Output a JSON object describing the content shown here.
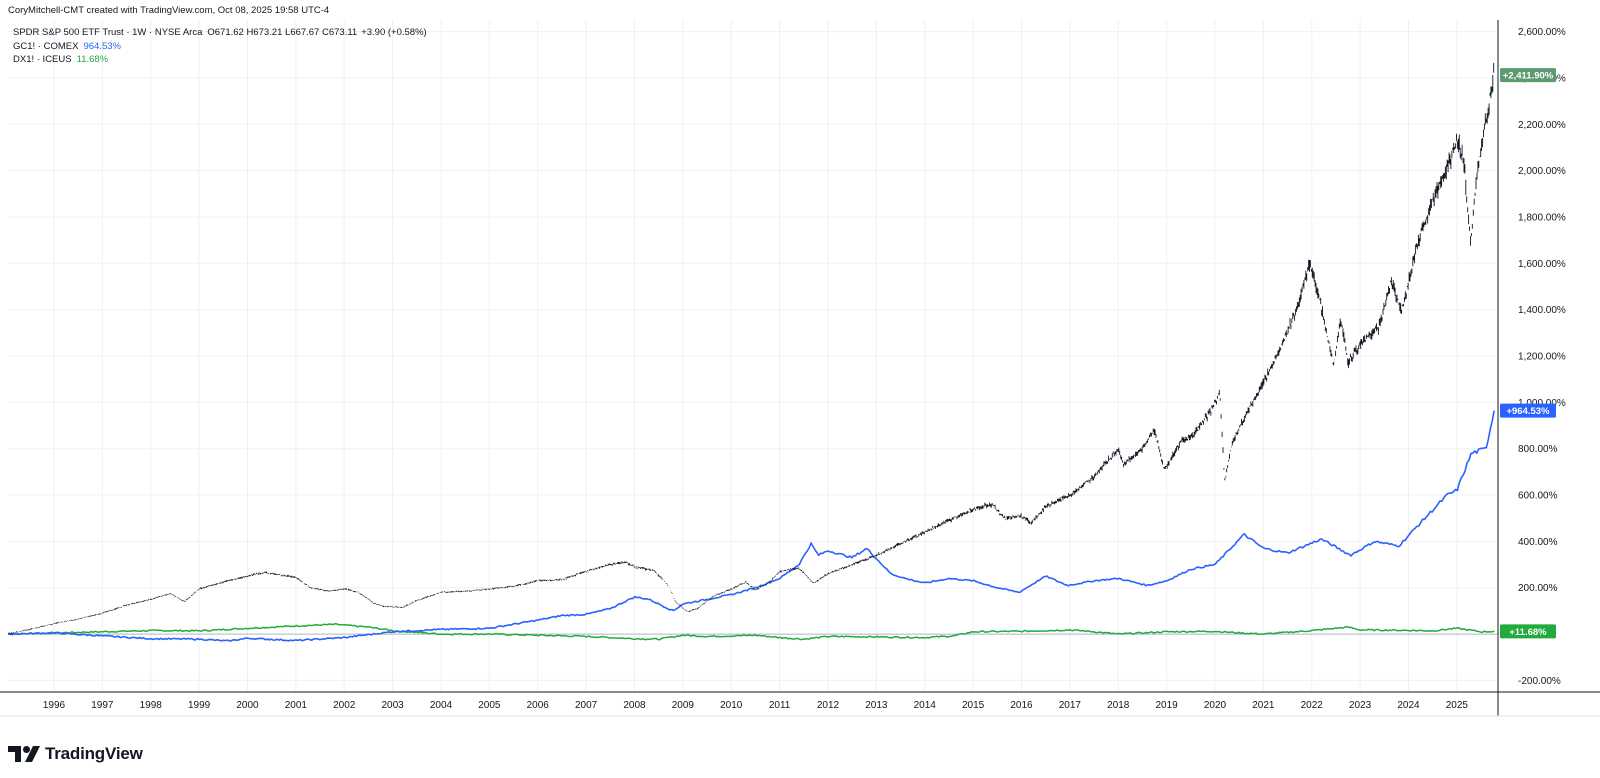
{
  "header": {
    "attribution": "CoryMitchell-CMT created with TradingView.com, Oct 08, 2025 19:58 UTC-4"
  },
  "legend": {
    "main": {
      "symbol": "SPDR S&P 500 ETF Trust · 1W · NYSE Arca",
      "ohlc": "O671.62 H673.21 L667.67 C673.11",
      "change": "+3.90 (+0.58%)"
    },
    "compare": [
      {
        "symbol": "GC1! · COMEX",
        "value": "964.53%",
        "color": "#2962ff"
      },
      {
        "symbol": "DX1! · ICEUS",
        "value": "11.68%",
        "color": "#22ab3c"
      }
    ]
  },
  "branding": {
    "name": "TradingView",
    "icon": "tradingview-logo-icon"
  },
  "chart_data": {
    "type": "line",
    "y_scale": "percent",
    "ylim": [
      -250,
      2650
    ],
    "xlim": [
      1995.05,
      2025.85
    ],
    "grid": true,
    "y_ticks": [
      -200,
      200,
      400,
      600,
      800,
      1000,
      1200,
      1400,
      1600,
      1800,
      2000,
      2200,
      2400,
      2600
    ],
    "y_tick_labels": [
      "-200.00%",
      "200.00%",
      "400.00%",
      "600.00%",
      "800.00%",
      "1,000.00%",
      "1,200.00%",
      "1,400.00%",
      "1,600.00%",
      "1,800.00%",
      "2,000.00%",
      "2,200.00%",
      "2,400.00%",
      "2,600.00%"
    ],
    "x_ticks": [
      1996,
      1997,
      1998,
      1999,
      2000,
      2001,
      2002,
      2003,
      2004,
      2005,
      2006,
      2007,
      2008,
      2009,
      2010,
      2011,
      2012,
      2013,
      2014,
      2015,
      2016,
      2017,
      2018,
      2019,
      2020,
      2021,
      2022,
      2023,
      2024,
      2025
    ],
    "x_tick_labels": [
      "1996",
      "1997",
      "1998",
      "1999",
      "2000",
      "2001",
      "2002",
      "2003",
      "2004",
      "2005",
      "2006",
      "2007",
      "2008",
      "2009",
      "2010",
      "2011",
      "2012",
      "2013",
      "2014",
      "2015",
      "2016",
      "2017",
      "2018",
      "2019",
      "2020",
      "2021",
      "2022",
      "2023",
      "2024",
      "2025"
    ],
    "series": [
      {
        "name": "SPDR S&P 500 ETF Trust",
        "style": "bars",
        "color": "#131722",
        "last_label": "+2,411.90%",
        "label_color": "#5b9a72",
        "points": [
          [
            1995.05,
            0
          ],
          [
            1995.5,
            20
          ],
          [
            1996.0,
            45
          ],
          [
            1996.5,
            65
          ],
          [
            1997.0,
            90
          ],
          [
            1997.5,
            125
          ],
          [
            1998.0,
            150
          ],
          [
            1998.4,
            175
          ],
          [
            1998.7,
            140
          ],
          [
            1999.0,
            195
          ],
          [
            1999.5,
            225
          ],
          [
            2000.0,
            250
          ],
          [
            2000.3,
            265
          ],
          [
            2000.7,
            255
          ],
          [
            2001.0,
            245
          ],
          [
            2001.3,
            200
          ],
          [
            2001.7,
            185
          ],
          [
            2002.0,
            195
          ],
          [
            2002.3,
            180
          ],
          [
            2002.6,
            135
          ],
          [
            2002.8,
            120
          ],
          [
            2003.2,
            115
          ],
          [
            2003.5,
            145
          ],
          [
            2004.0,
            180
          ],
          [
            2004.5,
            185
          ],
          [
            2005.0,
            195
          ],
          [
            2005.5,
            205
          ],
          [
            2006.0,
            230
          ],
          [
            2006.5,
            235
          ],
          [
            2007.0,
            270
          ],
          [
            2007.5,
            300
          ],
          [
            2007.8,
            310
          ],
          [
            2008.0,
            290
          ],
          [
            2008.4,
            275
          ],
          [
            2008.7,
            210
          ],
          [
            2008.85,
            140
          ],
          [
            2009.1,
            95
          ],
          [
            2009.3,
            110
          ],
          [
            2009.6,
            160
          ],
          [
            2010.0,
            195
          ],
          [
            2010.3,
            225
          ],
          [
            2010.5,
            190
          ],
          [
            2010.8,
            225
          ],
          [
            2011.0,
            270
          ],
          [
            2011.4,
            285
          ],
          [
            2011.7,
            220
          ],
          [
            2012.0,
            260
          ],
          [
            2012.5,
            300
          ],
          [
            2013.0,
            340
          ],
          [
            2013.5,
            390
          ],
          [
            2014.0,
            440
          ],
          [
            2014.5,
            490
          ],
          [
            2015.0,
            540
          ],
          [
            2015.4,
            560
          ],
          [
            2015.65,
            500
          ],
          [
            2016.0,
            510
          ],
          [
            2016.2,
            480
          ],
          [
            2016.5,
            550
          ],
          [
            2017.0,
            600
          ],
          [
            2017.5,
            680
          ],
          [
            2018.0,
            800
          ],
          [
            2018.1,
            730
          ],
          [
            2018.5,
            800
          ],
          [
            2018.75,
            880
          ],
          [
            2018.95,
            710
          ],
          [
            2019.3,
            830
          ],
          [
            2019.6,
            870
          ],
          [
            2019.9,
            960
          ],
          [
            2020.1,
            1040
          ],
          [
            2020.2,
            660
          ],
          [
            2020.35,
            820
          ],
          [
            2020.6,
            930
          ],
          [
            2021.0,
            1080
          ],
          [
            2021.4,
            1260
          ],
          [
            2021.7,
            1400
          ],
          [
            2021.95,
            1600
          ],
          [
            2022.15,
            1460
          ],
          [
            2022.45,
            1160
          ],
          [
            2022.6,
            1360
          ],
          [
            2022.75,
            1170
          ],
          [
            2023.0,
            1250
          ],
          [
            2023.4,
            1330
          ],
          [
            2023.65,
            1530
          ],
          [
            2023.85,
            1390
          ],
          [
            2024.2,
            1700
          ],
          [
            2024.5,
            1870
          ],
          [
            2024.8,
            2010
          ],
          [
            2025.0,
            2140
          ],
          [
            2025.15,
            2030
          ],
          [
            2025.28,
            1700
          ],
          [
            2025.4,
            1950
          ],
          [
            2025.6,
            2220
          ],
          [
            2025.77,
            2411.9
          ]
        ]
      },
      {
        "name": "GC1! · COMEX",
        "style": "line",
        "color": "#2962ff",
        "last_label": "+964.53%",
        "label_color": "#2962ff",
        "points": [
          [
            1995.05,
            0
          ],
          [
            1996.0,
            5
          ],
          [
            1997.0,
            -8
          ],
          [
            1998.0,
            -20
          ],
          [
            1999.0,
            -22
          ],
          [
            1999.6,
            -30
          ],
          [
            2000.0,
            -18
          ],
          [
            2001.0,
            -28
          ],
          [
            2002.0,
            -15
          ],
          [
            2003.0,
            10
          ],
          [
            2004.0,
            20
          ],
          [
            2005.0,
            25
          ],
          [
            2006.0,
            60
          ],
          [
            2006.5,
            80
          ],
          [
            2007.0,
            85
          ],
          [
            2007.5,
            110
          ],
          [
            2008.0,
            160
          ],
          [
            2008.3,
            150
          ],
          [
            2008.8,
            100
          ],
          [
            2009.0,
            130
          ],
          [
            2009.5,
            150
          ],
          [
            2010.0,
            170
          ],
          [
            2010.5,
            200
          ],
          [
            2011.0,
            240
          ],
          [
            2011.4,
            300
          ],
          [
            2011.65,
            390
          ],
          [
            2011.8,
            340
          ],
          [
            2012.0,
            360
          ],
          [
            2012.5,
            330
          ],
          [
            2012.8,
            370
          ],
          [
            2013.3,
            260
          ],
          [
            2013.6,
            240
          ],
          [
            2014.0,
            220
          ],
          [
            2014.5,
            240
          ],
          [
            2015.0,
            230
          ],
          [
            2015.5,
            200
          ],
          [
            2015.95,
            180
          ],
          [
            2016.5,
            250
          ],
          [
            2016.95,
            210
          ],
          [
            2017.5,
            230
          ],
          [
            2018.0,
            240
          ],
          [
            2018.6,
            210
          ],
          [
            2019.0,
            230
          ],
          [
            2019.5,
            280
          ],
          [
            2020.0,
            300
          ],
          [
            2020.6,
            430
          ],
          [
            2021.0,
            370
          ],
          [
            2021.5,
            350
          ],
          [
            2022.2,
            410
          ],
          [
            2022.8,
            340
          ],
          [
            2023.3,
            400
          ],
          [
            2023.8,
            380
          ],
          [
            2024.2,
            470
          ],
          [
            2024.8,
            600
          ],
          [
            2025.0,
            620
          ],
          [
            2025.3,
            780
          ],
          [
            2025.6,
            800
          ],
          [
            2025.77,
            964.53
          ]
        ]
      },
      {
        "name": "DX1! · ICEUS",
        "style": "line",
        "color": "#22ab3c",
        "last_label": "+11.68%",
        "label_color": "#22ab3c",
        "points": [
          [
            1995.05,
            0
          ],
          [
            1996.0,
            5
          ],
          [
            1997.0,
            10
          ],
          [
            1998.0,
            15
          ],
          [
            1999.0,
            14
          ],
          [
            2000.0,
            25
          ],
          [
            2001.0,
            35
          ],
          [
            2001.8,
            42
          ],
          [
            2002.5,
            30
          ],
          [
            2003.0,
            15
          ],
          [
            2004.0,
            0
          ],
          [
            2005.0,
            0
          ],
          [
            2006.0,
            -5
          ],
          [
            2007.0,
            -10
          ],
          [
            2008.0,
            -20
          ],
          [
            2008.5,
            -22
          ],
          [
            2009.0,
            -5
          ],
          [
            2009.5,
            -10
          ],
          [
            2010.0,
            -8
          ],
          [
            2010.5,
            -5
          ],
          [
            2011.0,
            -15
          ],
          [
            2011.5,
            -22
          ],
          [
            2012.0,
            -10
          ],
          [
            2013.0,
            -12
          ],
          [
            2014.0,
            -15
          ],
          [
            2014.6,
            -8
          ],
          [
            2015.0,
            10
          ],
          [
            2016.0,
            12
          ],
          [
            2017.0,
            18
          ],
          [
            2017.5,
            10
          ],
          [
            2018.0,
            0
          ],
          [
            2019.0,
            10
          ],
          [
            2020.0,
            12
          ],
          [
            2020.5,
            5
          ],
          [
            2021.0,
            0
          ],
          [
            2022.0,
            15
          ],
          [
            2022.75,
            30
          ],
          [
            2023.0,
            18
          ],
          [
            2024.0,
            16
          ],
          [
            2024.5,
            14
          ],
          [
            2025.0,
            25
          ],
          [
            2025.5,
            10
          ],
          [
            2025.77,
            11.68
          ]
        ]
      }
    ]
  }
}
